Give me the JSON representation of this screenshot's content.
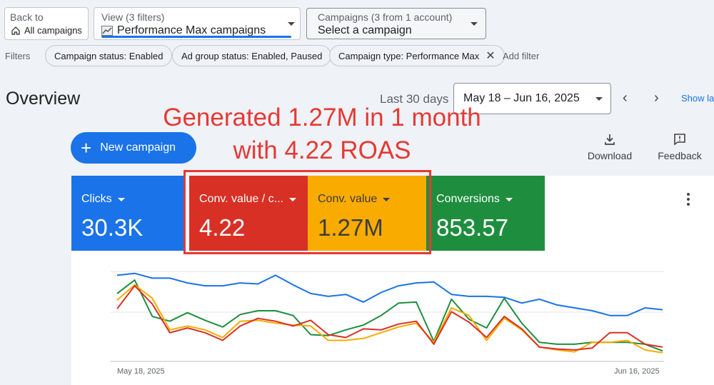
{
  "header": {
    "back": {
      "small": "Back to",
      "label": "All campaigns",
      "icon": "home-icon"
    },
    "view": {
      "small": "View (3 filters)",
      "label": "Performance Max campaigns",
      "icon": "trend-icon"
    },
    "campaigns": {
      "small": "Campaigns (3 from 1 account)",
      "label": "Select a campaign"
    }
  },
  "filters": {
    "label": "Filters",
    "chips": [
      "Campaign status: Enabled",
      "Ad group status: Enabled, Paused",
      "Campaign type: Performance Max"
    ],
    "add_filter": "Add filter"
  },
  "overview": {
    "title": "Overview",
    "range_label": "Last 30 days",
    "date_range": "May 18 – Jun 16, 2025",
    "show_link": "Show la"
  },
  "annotation": {
    "line1": "Generated 1.27M in 1 month",
    "line2": "with 4.22 ROAS",
    "color": "#e53935"
  },
  "actions": {
    "new_campaign": "New campaign",
    "download": "Download",
    "feedback": "Feedback"
  },
  "metrics": [
    {
      "label": "Clicks",
      "value": "30.3K",
      "color": "#1a73e8"
    },
    {
      "label": "Conv. value / c...",
      "value": "4.22",
      "color": "#d93025"
    },
    {
      "label": "Conv. value",
      "value": "1.27M",
      "color": "#f9ab00"
    },
    {
      "label": "Conversions",
      "value": "853.57",
      "color": "#1e8e3e"
    }
  ],
  "chart_data": {
    "type": "line",
    "x_start": "May 18, 2025",
    "x_end": "Jun 16, 2025",
    "x_ticks": [
      "May 18, 2025",
      "Jun 16, 2025"
    ],
    "series": [
      {
        "name": "Clicks",
        "color": "#1a73e8",
        "values": [
          90,
          92,
          87,
          87,
          82,
          79,
          79,
          82,
          81,
          90,
          80,
          71,
          68,
          70,
          62,
          72,
          79,
          82,
          83,
          70,
          68,
          68,
          67,
          61,
          65,
          59,
          56,
          53,
          48,
          48,
          56,
          54
        ]
      },
      {
        "name": "Conv. value / c...",
        "color": "#d93025",
        "values": [
          55,
          79,
          60,
          30,
          35,
          30,
          22,
          37,
          45,
          42,
          37,
          43,
          28,
          25,
          34,
          33,
          39,
          42,
          18,
          52,
          41,
          25,
          47,
          34,
          15,
          13,
          12,
          14,
          30,
          30,
          18,
          15
        ]
      },
      {
        "name": "Conv. value",
        "color": "#f9ab00",
        "values": [
          64,
          80,
          66,
          33,
          37,
          33,
          25,
          42,
          43,
          40,
          38,
          37,
          22,
          22,
          24,
          30,
          36,
          40,
          20,
          56,
          48,
          22,
          45,
          33,
          15,
          12,
          10,
          20,
          20,
          22,
          12,
          9
        ]
      },
      {
        "name": "Conversions",
        "color": "#1e8e3e",
        "values": [
          71,
          85,
          47,
          42,
          51,
          43,
          36,
          49,
          53,
          53,
          48,
          28,
          27,
          33,
          38,
          48,
          61,
          62,
          21,
          65,
          44,
          35,
          66,
          40,
          20,
          18,
          18,
          20,
          20,
          20,
          18,
          11
        ]
      }
    ]
  }
}
